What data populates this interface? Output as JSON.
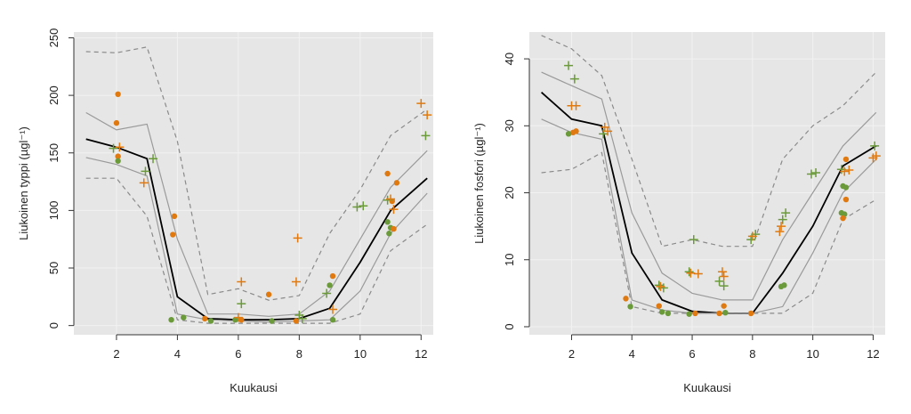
{
  "chart_data": [
    {
      "type": "line",
      "xlabel": "Kuukausi",
      "ylabel": "Liukoinen typpi (µgl⁻¹)",
      "xlim": [
        0.6,
        12.4
      ],
      "ylim": [
        -8,
        255
      ],
      "xticks": [
        2,
        4,
        6,
        8,
        10,
        12
      ],
      "yticks": [
        0,
        50,
        100,
        150,
        200,
        250
      ],
      "background": "#e6e6e6",
      "grid": true,
      "x": [
        1,
        2,
        3,
        4,
        5,
        6,
        7,
        8,
        9,
        10,
        11,
        12.2
      ],
      "series": [
        {
          "style": "upper-dashed",
          "color": "#8a8a8a",
          "values": [
            238,
            237,
            242,
            160,
            27,
            32,
            22,
            26,
            80,
            118,
            165,
            188
          ]
        },
        {
          "style": "upper-solid",
          "color": "#9a9a9a",
          "values": [
            185,
            170,
            175,
            75,
            10,
            10,
            8,
            10,
            30,
            75,
            120,
            152
          ]
        },
        {
          "style": "median",
          "color": "#000000",
          "values": [
            162,
            155,
            145,
            25,
            6,
            5,
            5,
            6,
            15,
            55,
            100,
            128
          ]
        },
        {
          "style": "lower-solid",
          "color": "#9a9a9a",
          "values": [
            146,
            140,
            130,
            10,
            5,
            4,
            3,
            4,
            5,
            30,
            80,
            115
          ]
        },
        {
          "style": "lower-dashed",
          "color": "#8a8a8a",
          "values": [
            128,
            128,
            95,
            5,
            2,
            2,
            2,
            2,
            2,
            10,
            65,
            88
          ]
        }
      ],
      "points": [
        {
          "marker": "circle",
          "color": "#e07a10",
          "x": 2.05,
          "y": 201
        },
        {
          "marker": "circle",
          "color": "#e07a10",
          "x": 2.0,
          "y": 176
        },
        {
          "marker": "circle",
          "color": "#e07a10",
          "x": 2.05,
          "y": 147
        },
        {
          "marker": "circle",
          "color": "#6b9a3a",
          "x": 2.05,
          "y": 143
        },
        {
          "marker": "circle",
          "color": "#e07a10",
          "x": 3.9,
          "y": 95
        },
        {
          "marker": "circle",
          "color": "#e07a10",
          "x": 3.85,
          "y": 79
        },
        {
          "marker": "circle",
          "color": "#6b9a3a",
          "x": 3.8,
          "y": 5
        },
        {
          "marker": "circle",
          "color": "#6b9a3a",
          "x": 4.2,
          "y": 7
        },
        {
          "marker": "circle",
          "color": "#e07a10",
          "x": 4.9,
          "y": 6
        },
        {
          "marker": "circle",
          "color": "#6b9a3a",
          "x": 5.1,
          "y": 4
        },
        {
          "marker": "circle",
          "color": "#6b9a3a",
          "x": 5.9,
          "y": 5
        },
        {
          "marker": "circle",
          "color": "#e07a10",
          "x": 6.1,
          "y": 5
        },
        {
          "marker": "circle",
          "color": "#e07a10",
          "x": 7.0,
          "y": 27
        },
        {
          "marker": "circle",
          "color": "#6b9a3a",
          "x": 7.1,
          "y": 4
        },
        {
          "marker": "circle",
          "color": "#e07a10",
          "x": 7.9,
          "y": 4
        },
        {
          "marker": "circle",
          "color": "#e07a10",
          "x": 9.1,
          "y": 43
        },
        {
          "marker": "circle",
          "color": "#6b9a3a",
          "x": 9.0,
          "y": 35
        },
        {
          "marker": "circle",
          "color": "#6b9a3a",
          "x": 9.1,
          "y": 5
        },
        {
          "marker": "circle",
          "color": "#e07a10",
          "x": 10.9,
          "y": 132
        },
        {
          "marker": "circle",
          "color": "#e07a10",
          "x": 11.2,
          "y": 124
        },
        {
          "marker": "circle",
          "color": "#e07a10",
          "x": 11.05,
          "y": 108
        },
        {
          "marker": "circle",
          "color": "#6b9a3a",
          "x": 10.9,
          "y": 90
        },
        {
          "marker": "circle",
          "color": "#6b9a3a",
          "x": 11.0,
          "y": 85
        },
        {
          "marker": "circle",
          "color": "#6b9a3a",
          "x": 10.95,
          "y": 80
        },
        {
          "marker": "circle",
          "color": "#e07a10",
          "x": 11.1,
          "y": 84
        },
        {
          "marker": "plus",
          "color": "#6b9a3a",
          "x": 1.9,
          "y": 154
        },
        {
          "marker": "plus",
          "color": "#e07a10",
          "x": 2.1,
          "y": 155
        },
        {
          "marker": "plus",
          "color": "#e07a10",
          "x": 2.9,
          "y": 124
        },
        {
          "marker": "plus",
          "color": "#6b9a3a",
          "x": 2.95,
          "y": 134
        },
        {
          "marker": "plus",
          "color": "#6b9a3a",
          "x": 3.2,
          "y": 145
        },
        {
          "marker": "plus",
          "color": "#e07a10",
          "x": 6.1,
          "y": 38
        },
        {
          "marker": "plus",
          "color": "#6b9a3a",
          "x": 6.1,
          "y": 19
        },
        {
          "marker": "plus",
          "color": "#e07a10",
          "x": 6.0,
          "y": 7
        },
        {
          "marker": "plus",
          "color": "#e07a10",
          "x": 7.9,
          "y": 38
        },
        {
          "marker": "plus",
          "color": "#e07a10",
          "x": 7.95,
          "y": 76
        },
        {
          "marker": "plus",
          "color": "#6b9a3a",
          "x": 8.0,
          "y": 9
        },
        {
          "marker": "plus",
          "color": "#6b9a3a",
          "x": 8.1,
          "y": 6
        },
        {
          "marker": "plus",
          "color": "#6b9a3a",
          "x": 8.9,
          "y": 28
        },
        {
          "marker": "plus",
          "color": "#e07a10",
          "x": 9.1,
          "y": 14
        },
        {
          "marker": "plus",
          "color": "#6b9a3a",
          "x": 9.9,
          "y": 103
        },
        {
          "marker": "plus",
          "color": "#6b9a3a",
          "x": 10.1,
          "y": 104
        },
        {
          "marker": "plus",
          "color": "#6b9a3a",
          "x": 10.9,
          "y": 109
        },
        {
          "marker": "plus",
          "color": "#e07a10",
          "x": 11.0,
          "y": 110
        },
        {
          "marker": "plus",
          "color": "#e07a10",
          "x": 11.1,
          "y": 101
        },
        {
          "marker": "plus",
          "color": "#e07a10",
          "x": 12.0,
          "y": 193
        },
        {
          "marker": "plus",
          "color": "#e07a10",
          "x": 12.2,
          "y": 183
        },
        {
          "marker": "plus",
          "color": "#6b9a3a",
          "x": 12.15,
          "y": 165
        }
      ]
    },
    {
      "type": "line",
      "xlabel": "Kuukausi",
      "ylabel": "Liukoinen fosfori (µgl⁻¹)",
      "xlim": [
        0.6,
        12.4
      ],
      "ylim": [
        -1.2,
        44
      ],
      "xticks": [
        2,
        4,
        6,
        8,
        10,
        12
      ],
      "yticks": [
        0,
        10,
        20,
        30,
        40
      ],
      "background": "#e6e6e6",
      "grid": true,
      "x": [
        1,
        2,
        3,
        4,
        5,
        6,
        7,
        8,
        9,
        10,
        11,
        12.1
      ],
      "series": [
        {
          "style": "upper-dashed",
          "color": "#8a8a8a",
          "values": [
            43.5,
            41.5,
            37.5,
            25,
            12,
            13,
            12,
            12,
            25,
            30,
            33,
            38
          ]
        },
        {
          "style": "upper-solid",
          "color": "#9a9a9a",
          "values": [
            38,
            36,
            34,
            17,
            8,
            5,
            4,
            4,
            13,
            20,
            27,
            32
          ]
        },
        {
          "style": "median",
          "color": "#000000",
          "values": [
            35,
            31,
            30,
            11,
            4,
            2.3,
            2,
            2,
            8,
            15,
            24,
            27
          ]
        },
        {
          "style": "lower-solid",
          "color": "#9a9a9a",
          "values": [
            31,
            29,
            28,
            4,
            2.5,
            2,
            2,
            2,
            3,
            11,
            20,
            25
          ]
        },
        {
          "style": "lower-dashed",
          "color": "#8a8a8a",
          "values": [
            23,
            23.5,
            26,
            3,
            2,
            2,
            2,
            2,
            2,
            5,
            16,
            19
          ]
        }
      ],
      "points": [
        {
          "marker": "circle",
          "color": "#e07a10",
          "x": 2.05,
          "y": 29
        },
        {
          "marker": "circle",
          "color": "#6b9a3a",
          "x": 1.9,
          "y": 28.8
        },
        {
          "marker": "circle",
          "color": "#e07a10",
          "x": 2.15,
          "y": 29.2
        },
        {
          "marker": "circle",
          "color": "#e07a10",
          "x": 3.8,
          "y": 4.2
        },
        {
          "marker": "circle",
          "color": "#6b9a3a",
          "x": 3.95,
          "y": 3
        },
        {
          "marker": "circle",
          "color": "#e07a10",
          "x": 4.9,
          "y": 3.1
        },
        {
          "marker": "circle",
          "color": "#6b9a3a",
          "x": 5.0,
          "y": 2.2
        },
        {
          "marker": "circle",
          "color": "#6b9a3a",
          "x": 5.2,
          "y": 2
        },
        {
          "marker": "circle",
          "color": "#6b9a3a",
          "x": 5.9,
          "y": 1.9
        },
        {
          "marker": "circle",
          "color": "#e07a10",
          "x": 6.1,
          "y": 2
        },
        {
          "marker": "circle",
          "color": "#e07a10",
          "x": 6.9,
          "y": 2
        },
        {
          "marker": "circle",
          "color": "#e07a10",
          "x": 7.05,
          "y": 3.1
        },
        {
          "marker": "circle",
          "color": "#6b9a3a",
          "x": 7.1,
          "y": 2.1
        },
        {
          "marker": "circle",
          "color": "#e07a10",
          "x": 7.95,
          "y": 2
        },
        {
          "marker": "circle",
          "color": "#6b9a3a",
          "x": 8.95,
          "y": 6
        },
        {
          "marker": "circle",
          "color": "#6b9a3a",
          "x": 9.05,
          "y": 6.2
        },
        {
          "marker": "circle",
          "color": "#e07a10",
          "x": 11.1,
          "y": 25
        },
        {
          "marker": "circle",
          "color": "#6b9a3a",
          "x": 11.0,
          "y": 21
        },
        {
          "marker": "circle",
          "color": "#6b9a3a",
          "x": 11.1,
          "y": 20.8
        },
        {
          "marker": "circle",
          "color": "#e07a10",
          "x": 11.1,
          "y": 19
        },
        {
          "marker": "circle",
          "color": "#6b9a3a",
          "x": 10.95,
          "y": 17
        },
        {
          "marker": "circle",
          "color": "#6b9a3a",
          "x": 11.05,
          "y": 16.8
        },
        {
          "marker": "circle",
          "color": "#e07a10",
          "x": 11.0,
          "y": 16.2
        },
        {
          "marker": "plus",
          "color": "#6b9a3a",
          "x": 1.9,
          "y": 39
        },
        {
          "marker": "plus",
          "color": "#6b9a3a",
          "x": 2.1,
          "y": 37
        },
        {
          "marker": "plus",
          "color": "#e07a10",
          "x": 2.0,
          "y": 33
        },
        {
          "marker": "plus",
          "color": "#e07a10",
          "x": 2.15,
          "y": 33
        },
        {
          "marker": "plus",
          "color": "#e07a10",
          "x": 3.1,
          "y": 29.8
        },
        {
          "marker": "plus",
          "color": "#6b9a3a",
          "x": 3.05,
          "y": 28.8
        },
        {
          "marker": "plus",
          "color": "#e07a10",
          "x": 3.2,
          "y": 29.2
        },
        {
          "marker": "plus",
          "color": "#6b9a3a",
          "x": 4.9,
          "y": 6.2
        },
        {
          "marker": "plus",
          "color": "#6b9a3a",
          "x": 5.05,
          "y": 5.8
        },
        {
          "marker": "plus",
          "color": "#e07a10",
          "x": 4.95,
          "y": 6
        },
        {
          "marker": "plus",
          "color": "#6b9a3a",
          "x": 5.9,
          "y": 8.2
        },
        {
          "marker": "plus",
          "color": "#e07a10",
          "x": 5.95,
          "y": 8
        },
        {
          "marker": "plus",
          "color": "#e07a10",
          "x": 6.2,
          "y": 7.9
        },
        {
          "marker": "plus",
          "color": "#6b9a3a",
          "x": 6.05,
          "y": 13
        },
        {
          "marker": "plus",
          "color": "#6b9a3a",
          "x": 6.9,
          "y": 6.8
        },
        {
          "marker": "plus",
          "color": "#6b9a3a",
          "x": 7.05,
          "y": 6.1
        },
        {
          "marker": "plus",
          "color": "#e07a10",
          "x": 7.0,
          "y": 8.2
        },
        {
          "marker": "plus",
          "color": "#e07a10",
          "x": 7.05,
          "y": 7.5
        },
        {
          "marker": "plus",
          "color": "#6b9a3a",
          "x": 7.95,
          "y": 13
        },
        {
          "marker": "plus",
          "color": "#6b9a3a",
          "x": 8.1,
          "y": 13.8
        },
        {
          "marker": "plus",
          "color": "#e07a10",
          "x": 8.0,
          "y": 13.5
        },
        {
          "marker": "plus",
          "color": "#e07a10",
          "x": 8.9,
          "y": 14.2
        },
        {
          "marker": "plus",
          "color": "#e07a10",
          "x": 8.95,
          "y": 15
        },
        {
          "marker": "plus",
          "color": "#6b9a3a",
          "x": 9.0,
          "y": 16
        },
        {
          "marker": "plus",
          "color": "#6b9a3a",
          "x": 9.1,
          "y": 17
        },
        {
          "marker": "plus",
          "color": "#6b9a3a",
          "x": 9.95,
          "y": 22.8
        },
        {
          "marker": "plus",
          "color": "#6b9a3a",
          "x": 10.1,
          "y": 23
        },
        {
          "marker": "plus",
          "color": "#6b9a3a",
          "x": 10.95,
          "y": 23.5
        },
        {
          "marker": "plus",
          "color": "#e07a10",
          "x": 11.05,
          "y": 23.2
        },
        {
          "marker": "plus",
          "color": "#e07a10",
          "x": 11.2,
          "y": 23.4
        },
        {
          "marker": "plus",
          "color": "#6b9a3a",
          "x": 12.05,
          "y": 27
        },
        {
          "marker": "plus",
          "color": "#e07a10",
          "x": 12.1,
          "y": 25.5
        },
        {
          "marker": "plus",
          "color": "#e07a10",
          "x": 12.0,
          "y": 25.2
        }
      ]
    }
  ]
}
